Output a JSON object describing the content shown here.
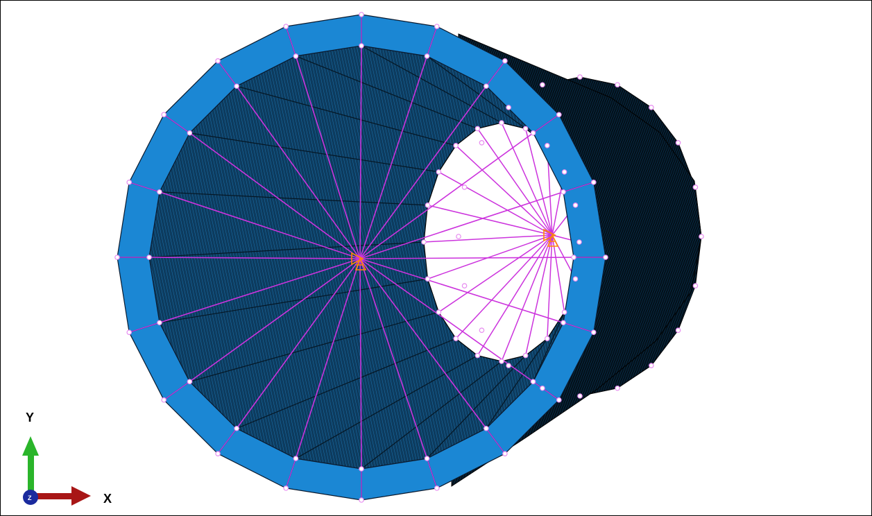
{
  "viewport": {
    "background": "#ffffff"
  },
  "model": {
    "description_icon": "meshed-cylindrical-tube",
    "colors": {
      "ring_face": "#1b87d4",
      "ring_edge": "#0b1a2e",
      "inner_wall": "#0d3b5e",
      "inner_wall_line": "#1a74b0",
      "outer_shell": "#041018",
      "coupling_line": "#cc33dd",
      "node_marker": "#e78bf0",
      "reference_point": "#ff8a00"
    },
    "segments": 20
  },
  "triad": {
    "x_label": "X",
    "y_label": "Y",
    "z_label": "Z",
    "x_color": "#a81616",
    "y_color": "#2ab52a",
    "z_color": "#1a2a9e"
  }
}
